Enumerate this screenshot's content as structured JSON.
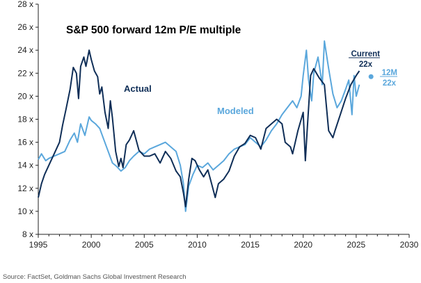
{
  "chart_data": {
    "type": "line",
    "title": "S&P 500 forward 12m P/E multiple",
    "xlabel": "",
    "ylabel": "",
    "xlim": [
      1995,
      2030
    ],
    "ylim": [
      8,
      28
    ],
    "x_ticks": [
      "1995",
      "2000",
      "2005",
      "2010",
      "2015",
      "2020",
      "2025",
      "2030"
    ],
    "y_ticks": [
      "8 x",
      "10 x",
      "12 x",
      "14 x",
      "16 x",
      "18 x",
      "20 x",
      "22 x",
      "24 x",
      "26 x",
      "28 x"
    ],
    "grid": false,
    "colors": {
      "actual": "#0f2e57",
      "modeled": "#5aa7dc"
    },
    "series": [
      {
        "name": "Actual",
        "x": [
          1995.0,
          1995.3,
          1995.6,
          1996.0,
          1996.3,
          1996.6,
          1997.0,
          1997.3,
          1997.6,
          1998.0,
          1998.3,
          1998.6,
          1998.8,
          1999.0,
          1999.3,
          1999.5,
          1999.8,
          2000.0,
          2000.3,
          2000.6,
          2000.8,
          2001.0,
          2001.3,
          2001.6,
          2001.8,
          2002.0,
          2002.3,
          2002.6,
          2002.8,
          2003.0,
          2003.3,
          2003.6,
          2004.0,
          2004.5,
          2005.0,
          2005.5,
          2006.0,
          2006.5,
          2007.0,
          2007.5,
          2008.0,
          2008.4,
          2008.7,
          2008.9,
          2009.2,
          2009.5,
          2009.8,
          2010.2,
          2010.6,
          2011.0,
          2011.3,
          2011.7,
          2012.0,
          2012.5,
          2013.0,
          2013.5,
          2014.0,
          2014.5,
          2015.0,
          2015.5,
          2016.0,
          2016.5,
          2017.0,
          2017.5,
          2018.0,
          2018.3,
          2018.8,
          2019.0,
          2019.5,
          2020.0,
          2020.2,
          2020.4,
          2020.7,
          2021.0,
          2021.5,
          2022.0,
          2022.4,
          2022.8,
          2023.0,
          2023.5,
          2024.0,
          2024.5,
          2025.0,
          2025.3
        ],
        "values": [
          11.2,
          12.4,
          13.2,
          14.0,
          14.6,
          15.2,
          16.0,
          17.5,
          18.8,
          20.6,
          22.5,
          22.0,
          19.8,
          22.6,
          23.4,
          22.6,
          24.0,
          23.2,
          22.2,
          21.7,
          20.2,
          20.8,
          18.6,
          17.2,
          19.6,
          18.1,
          15.2,
          13.9,
          14.6,
          13.8,
          15.8,
          16.2,
          17.0,
          15.3,
          14.8,
          14.8,
          15.0,
          14.2,
          15.2,
          14.6,
          13.5,
          13.0,
          11.6,
          10.4,
          12.8,
          14.6,
          14.4,
          13.6,
          13.0,
          13.6,
          12.6,
          11.2,
          12.4,
          12.8,
          13.5,
          14.8,
          15.6,
          15.9,
          16.6,
          16.4,
          15.4,
          17.2,
          17.6,
          18.0,
          17.6,
          16.0,
          15.6,
          15.0,
          17.0,
          18.6,
          14.4,
          17.4,
          21.8,
          22.4,
          21.6,
          21.0,
          17.0,
          16.4,
          17.0,
          18.4,
          19.8,
          21.0,
          21.8,
          22.2
        ]
      },
      {
        "name": "Modeled",
        "x": [
          1995.0,
          1995.3,
          1995.7,
          1996.0,
          1996.5,
          1997.0,
          1997.5,
          1998.0,
          1998.4,
          1998.7,
          1999.0,
          1999.4,
          1999.8,
          2000.0,
          2000.4,
          2000.8,
          2001.2,
          2001.6,
          2002.0,
          2002.4,
          2002.8,
          2003.2,
          2003.6,
          2004.0,
          2004.5,
          2005.0,
          2005.5,
          2006.0,
          2006.5,
          2007.0,
          2007.5,
          2008.0,
          2008.4,
          2008.7,
          2008.9,
          2009.2,
          2009.6,
          2010.0,
          2010.5,
          2011.0,
          2011.5,
          2012.0,
          2012.5,
          2013.0,
          2013.5,
          2014.0,
          2014.5,
          2015.0,
          2015.5,
          2016.0,
          2016.5,
          2017.0,
          2017.5,
          2018.0,
          2018.5,
          2019.0,
          2019.4,
          2019.8,
          2020.0,
          2020.3,
          2020.5,
          2020.8,
          2021.0,
          2021.4,
          2021.8,
          2022.0,
          2022.4,
          2022.8,
          2023.2,
          2023.6,
          2024.0,
          2024.3,
          2024.6,
          2024.8,
          2025.0,
          2025.3
        ],
        "values": [
          14.5,
          15.0,
          14.4,
          14.6,
          14.8,
          15.0,
          15.2,
          16.2,
          16.8,
          16.0,
          17.6,
          16.6,
          18.2,
          17.9,
          17.6,
          17.2,
          16.2,
          15.2,
          14.2,
          13.9,
          13.5,
          13.8,
          14.4,
          14.8,
          15.2,
          15.0,
          15.4,
          15.6,
          15.8,
          16.0,
          15.6,
          15.2,
          14.0,
          12.4,
          10.0,
          12.2,
          13.2,
          14.0,
          13.8,
          14.2,
          13.6,
          14.0,
          14.4,
          15.0,
          15.4,
          15.6,
          15.8,
          16.4,
          16.0,
          15.6,
          16.2,
          17.0,
          17.6,
          18.4,
          19.0,
          19.6,
          19.0,
          20.0,
          21.8,
          24.0,
          21.5,
          19.6,
          22.0,
          23.4,
          21.0,
          24.8,
          22.4,
          20.2,
          19.0,
          19.6,
          20.6,
          21.4,
          18.4,
          21.8,
          20.0,
          21.0
        ]
      }
    ],
    "annotations": {
      "actual_label": "Actual",
      "modeled_label": "Modeled",
      "current_label": "Current",
      "current_value": "22x",
      "model_label": "12M",
      "model_value": "22x",
      "model_point": {
        "x": 2026.4,
        "y": 21.7
      }
    },
    "source": "Source: FactSet, Goldman Sachs Global Investment Research"
  }
}
